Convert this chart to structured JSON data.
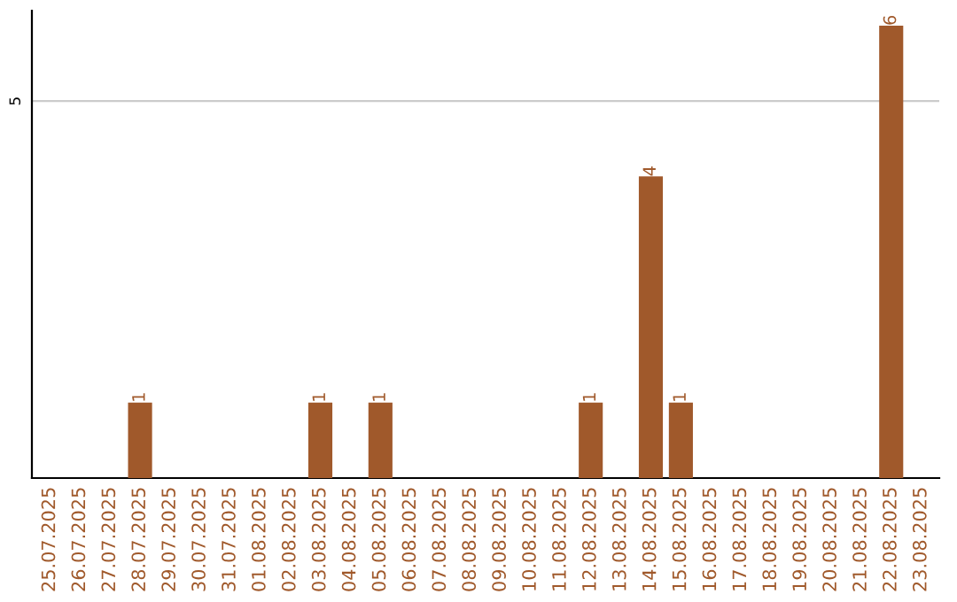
{
  "chart_data": {
    "type": "bar",
    "categories": [
      "25.07.2025",
      "26.07.2025",
      "27.07.2025",
      "28.07.2025",
      "29.07.2025",
      "30.07.2025",
      "31.07.2025",
      "01.08.2025",
      "02.08.2025",
      "03.08.2025",
      "04.08.2025",
      "05.08.2025",
      "06.08.2025",
      "07.08.2025",
      "08.08.2025",
      "09.08.2025",
      "10.08.2025",
      "11.08.2025",
      "12.08.2025",
      "13.08.2025",
      "14.08.2025",
      "15.08.2025",
      "16.08.2025",
      "17.08.2025",
      "18.08.2025",
      "19.08.2025",
      "20.08.2025",
      "21.08.2025",
      "22.08.2025",
      "23.08.2025"
    ],
    "values": [
      0,
      0,
      0,
      1,
      0,
      0,
      0,
      0,
      0,
      1,
      0,
      1,
      0,
      0,
      0,
      0,
      0,
      0,
      1,
      0,
      4,
      1,
      0,
      0,
      0,
      0,
      0,
      0,
      6,
      0
    ],
    "color": "#a0592b",
    "value_labels": [
      null,
      null,
      null,
      "1",
      null,
      null,
      null,
      null,
      null,
      "1",
      null,
      "1",
      null,
      null,
      null,
      null,
      null,
      null,
      "1",
      null,
      "4",
      "1",
      null,
      null,
      null,
      null,
      null,
      null,
      "6",
      null
    ],
    "ylim": [
      0,
      6.2
    ],
    "yticks": [
      5
    ],
    "grid": "y"
  }
}
